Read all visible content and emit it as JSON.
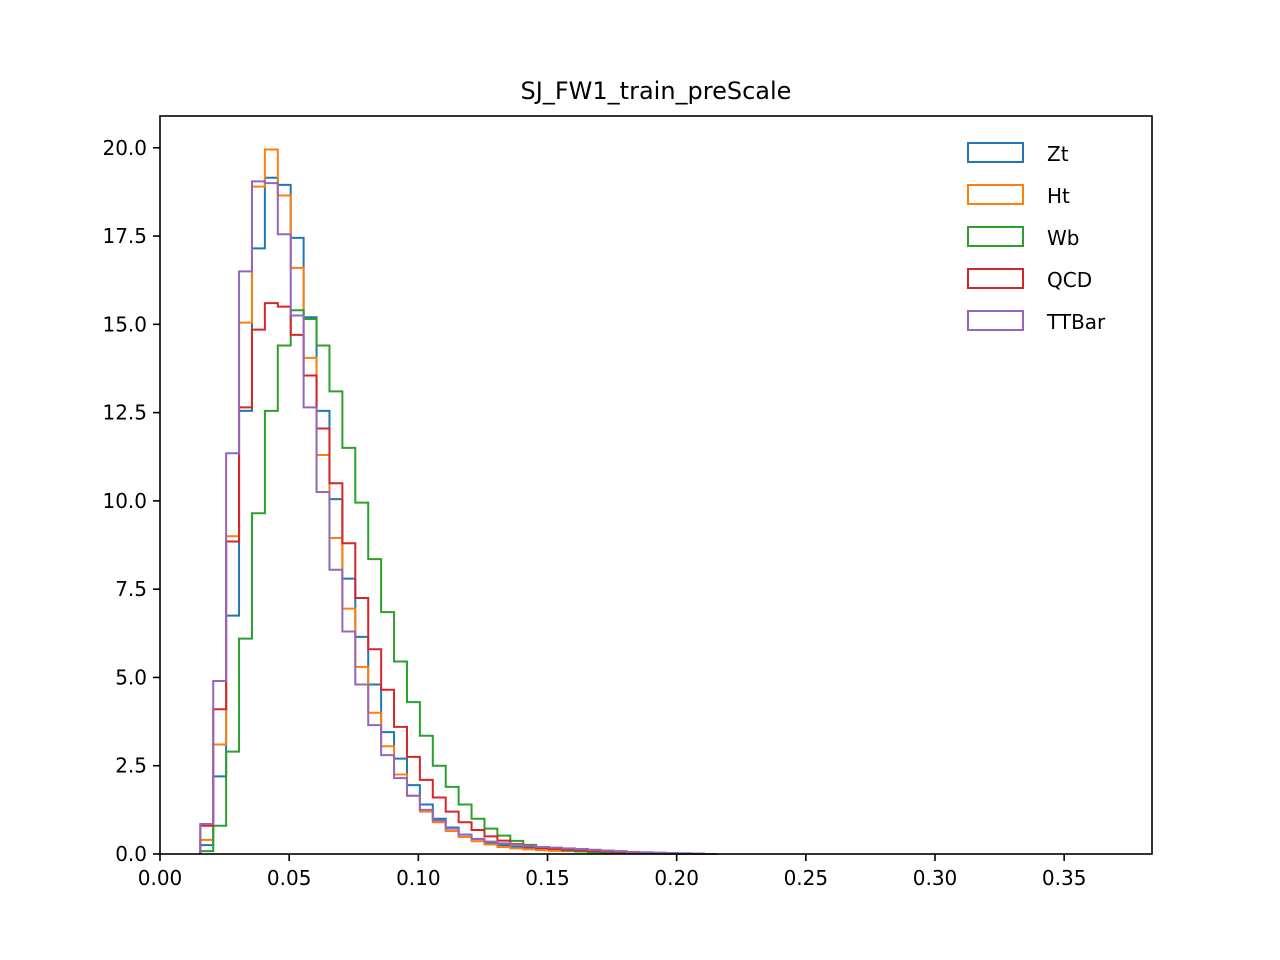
{
  "chart_data": {
    "type": "histogram-step",
    "title": "SJ_FW1_train_preScale",
    "xlabel": "",
    "ylabel": "",
    "xlim": [
      0.0,
      0.384
    ],
    "ylim": [
      0.0,
      20.9
    ],
    "xticks": [
      "0.00",
      "0.05",
      "0.10",
      "0.15",
      "0.20",
      "0.25",
      "0.30",
      "0.35"
    ],
    "xtick_values": [
      0.0,
      0.05,
      0.1,
      0.15,
      0.2,
      0.25,
      0.3,
      0.35
    ],
    "yticks": [
      "0.0",
      "2.5",
      "5.0",
      "7.5",
      "10.0",
      "12.5",
      "15.0",
      "17.5",
      "20.0"
    ],
    "ytick_values": [
      0.0,
      2.5,
      5.0,
      7.5,
      10.0,
      12.5,
      15.0,
      17.5,
      20.0
    ],
    "grid": false,
    "legend_position": "top-right",
    "bin_start": 0.0156,
    "bin_width": 0.005,
    "series": [
      {
        "name": "Zt",
        "color": "#1f77b4",
        "values": [
          0.25,
          2.2,
          6.75,
          12.55,
          17.15,
          19.15,
          18.95,
          17.45,
          15.2,
          12.55,
          10.05,
          7.8,
          6.15,
          4.8,
          3.45,
          2.7,
          1.95,
          1.4,
          1.0,
          0.75,
          0.55,
          0.42,
          0.32,
          0.25,
          0.2,
          0.17,
          0.14,
          0.12,
          0.1,
          0.09,
          0.08,
          0.07,
          0.05,
          0.04,
          0.03,
          0.02,
          0.01,
          0.01,
          0.005,
          0.0
        ]
      },
      {
        "name": "Ht",
        "color": "#ff7f0e",
        "values": [
          0.4,
          3.1,
          9.0,
          15.05,
          18.9,
          19.95,
          18.65,
          16.6,
          14.05,
          11.3,
          8.95,
          6.95,
          5.3,
          4.0,
          3.05,
          2.25,
          1.65,
          1.2,
          0.9,
          0.65,
          0.48,
          0.36,
          0.27,
          0.2,
          0.16,
          0.13,
          0.11,
          0.09,
          0.08,
          0.07,
          0.06,
          0.05,
          0.04,
          0.03,
          0.02,
          0.01,
          0.01,
          0.005,
          0.0,
          0.0
        ]
      },
      {
        "name": "Wb",
        "color": "#2ca02c",
        "values": [
          0.08,
          0.8,
          2.9,
          6.1,
          9.65,
          12.55,
          14.4,
          15.4,
          15.15,
          14.4,
          13.1,
          11.5,
          9.95,
          8.35,
          6.85,
          5.45,
          4.3,
          3.35,
          2.5,
          1.9,
          1.4,
          1.0,
          0.72,
          0.52,
          0.37,
          0.26,
          0.19,
          0.14,
          0.1,
          0.07,
          0.05,
          0.04,
          0.03,
          0.02,
          0.01,
          0.01,
          0.005,
          0.0,
          0.0,
          0.0
        ]
      },
      {
        "name": "QCD",
        "color": "#d62728",
        "values": [
          0.8,
          4.1,
          8.85,
          12.65,
          14.85,
          15.6,
          15.5,
          14.7,
          13.55,
          12.05,
          10.5,
          8.8,
          7.25,
          5.8,
          4.65,
          3.6,
          2.75,
          2.1,
          1.6,
          1.2,
          0.9,
          0.68,
          0.5,
          0.38,
          0.28,
          0.21,
          0.17,
          0.14,
          0.12,
          0.1,
          0.09,
          0.07,
          0.06,
          0.05,
          0.04,
          0.03,
          0.02,
          0.01,
          0.01,
          0.0
        ]
      },
      {
        "name": "TTBar",
        "color": "#9467bd",
        "values": [
          0.85,
          4.9,
          11.35,
          16.5,
          19.05,
          19.0,
          17.55,
          15.25,
          12.65,
          10.25,
          8.05,
          6.3,
          4.8,
          3.65,
          2.8,
          2.15,
          1.65,
          1.25,
          0.95,
          0.72,
          0.55,
          0.43,
          0.35,
          0.3,
          0.26,
          0.23,
          0.2,
          0.18,
          0.16,
          0.14,
          0.12,
          0.1,
          0.08,
          0.06,
          0.05,
          0.04,
          0.03,
          0.02,
          0.01,
          0.0
        ]
      }
    ]
  }
}
